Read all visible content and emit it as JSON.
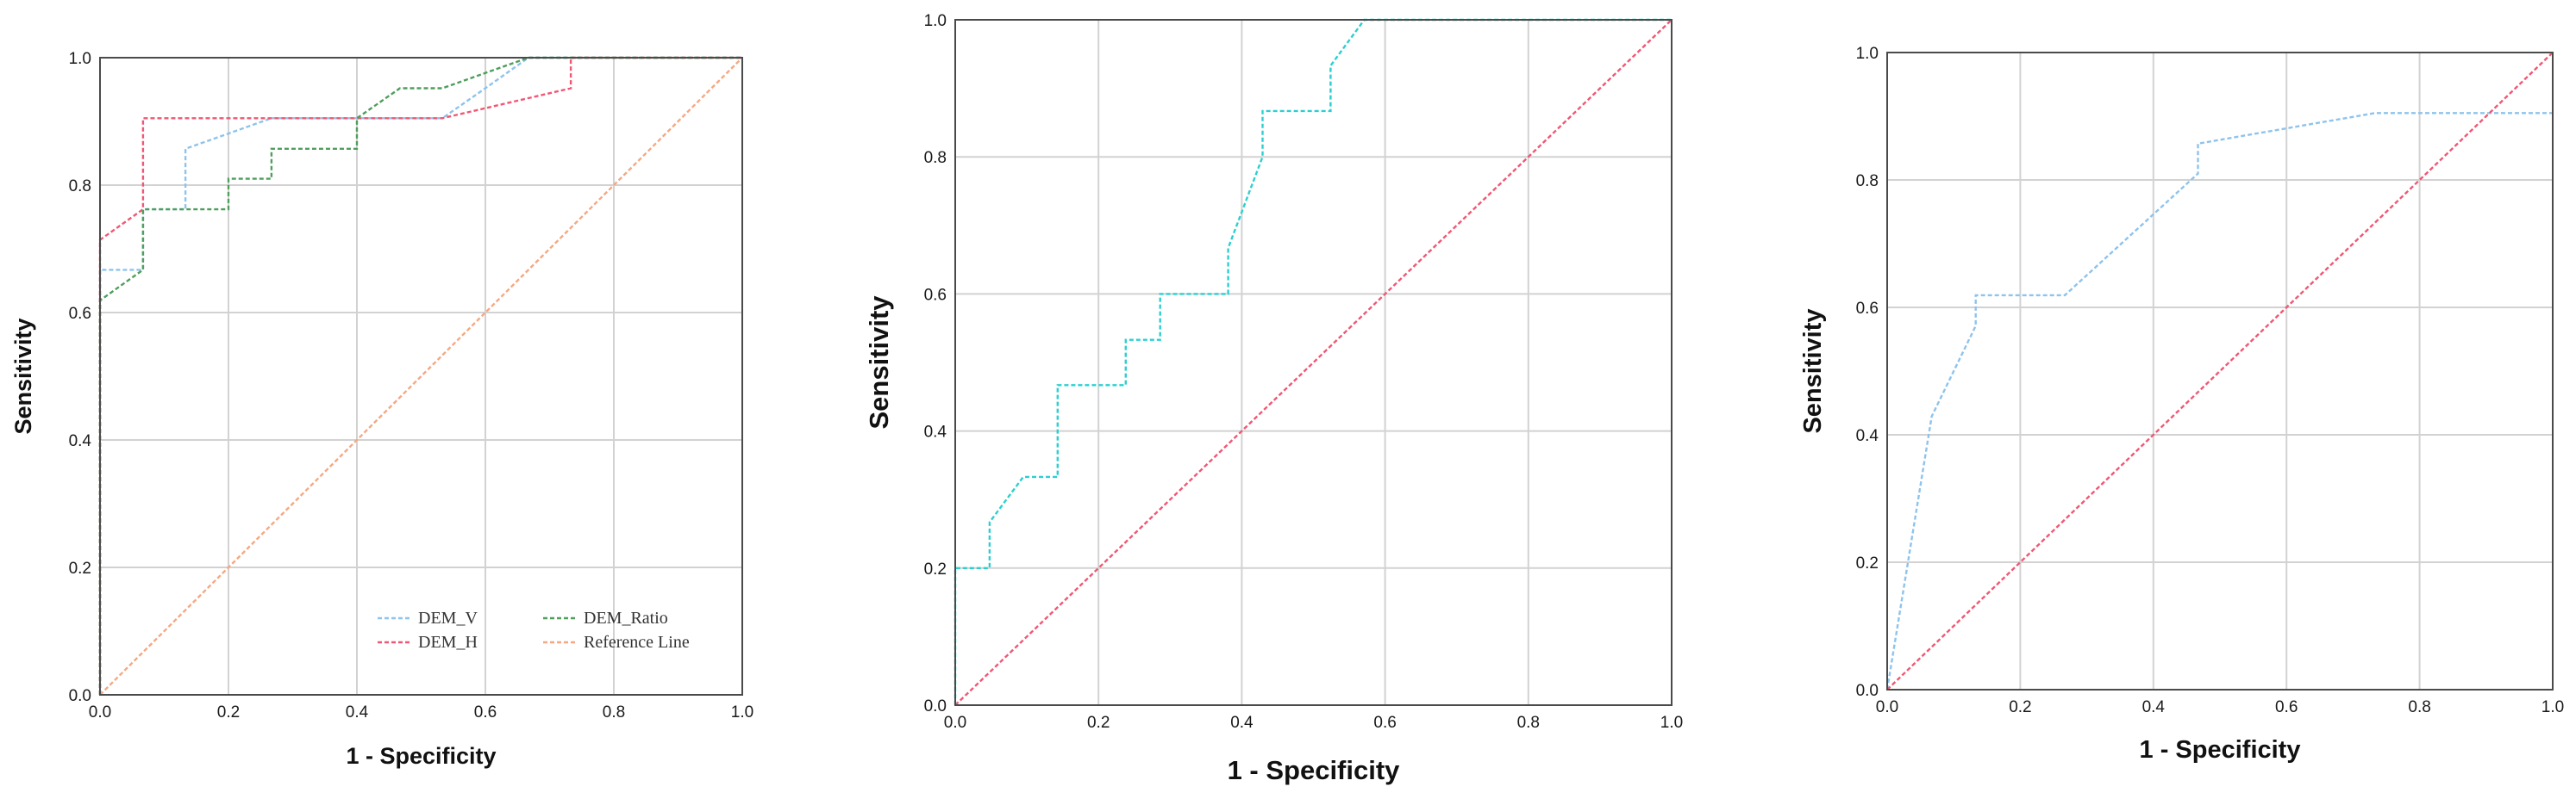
{
  "chart_data": [
    {
      "type": "line",
      "xlabel": "1 - Specificity",
      "ylabel": "Sensitivity",
      "xlim": [
        0,
        1
      ],
      "ylim": [
        0,
        1
      ],
      "xticks": [
        "0.0",
        "0.2",
        "0.4",
        "0.6",
        "0.8",
        "1.0"
      ],
      "yticks": [
        "0.0",
        "0.2",
        "0.4",
        "0.6",
        "0.8",
        "1.0"
      ],
      "grid": true,
      "legend": "bottom-right",
      "series": [
        {
          "name": "DEM_V",
          "color": "#8ec3ec",
          "x": [
            0,
            0,
            0.067,
            0.067,
            0.133,
            0.133,
            0.2,
            0.267,
            0.533,
            0.6,
            0.667,
            1
          ],
          "y": [
            0,
            0.667,
            0.667,
            0.762,
            0.762,
            0.857,
            0.881,
            0.905,
            0.905,
            0.952,
            1,
            1
          ]
        },
        {
          "name": "DEM_H",
          "color": "#f15773",
          "x": [
            0,
            0,
            0.067,
            0.067,
            0.533,
            0.733,
            0.733,
            1
          ],
          "y": [
            0,
            0.714,
            0.762,
            0.905,
            0.905,
            0.952,
            1,
            1
          ]
        },
        {
          "name": "DEM_Ratio",
          "color": "#4f9e5c",
          "x": [
            0,
            0,
            0.067,
            0.067,
            0.2,
            0.2,
            0.267,
            0.267,
            0.4,
            0.4,
            0.467,
            0.533,
            0.667,
            1
          ],
          "y": [
            0,
            0.619,
            0.667,
            0.762,
            0.762,
            0.81,
            0.81,
            0.857,
            0.857,
            0.905,
            0.952,
            0.952,
            1,
            1
          ]
        },
        {
          "name": "Reference Line",
          "color": "#f5a882",
          "x": [
            0,
            1
          ],
          "y": [
            0,
            1
          ]
        }
      ]
    },
    {
      "type": "line",
      "xlabel": "1 - Specificity",
      "ylabel": "Sensitivity",
      "xlim": [
        0,
        1
      ],
      "ylim": [
        0,
        1
      ],
      "xticks": [
        "0.0",
        "0.2",
        "0.4",
        "0.6",
        "0.8",
        "1.0"
      ],
      "yticks": [
        "0.0",
        "0.2",
        "0.4",
        "0.6",
        "0.8",
        "1.0"
      ],
      "grid": true,
      "series": [
        {
          "color": "#2ccfd0",
          "x": [
            0,
            0,
            0.048,
            0.048,
            0.095,
            0.143,
            0.143,
            0.238,
            0.238,
            0.286,
            0.286,
            0.381,
            0.381,
            0.429,
            0.429,
            0.524,
            0.524,
            0.571,
            1
          ],
          "y": [
            0,
            0.2,
            0.2,
            0.267,
            0.333,
            0.333,
            0.467,
            0.467,
            0.533,
            0.533,
            0.6,
            0.6,
            0.667,
            0.8,
            0.867,
            0.867,
            0.933,
            1,
            1
          ]
        },
        {
          "color": "#f15773",
          "x": [
            0,
            1
          ],
          "y": [
            0,
            1
          ]
        }
      ]
    },
    {
      "type": "line",
      "xlabel": "1 - Specificity",
      "ylabel": "Sensitivity",
      "xlim": [
        0,
        1
      ],
      "ylim": [
        0,
        1
      ],
      "xticks": [
        "0.0",
        "0.2",
        "0.4",
        "0.6",
        "0.8",
        "1.0"
      ],
      "yticks": [
        "0.0",
        "0.2",
        "0.4",
        "0.6",
        "0.8",
        "1.0"
      ],
      "grid": true,
      "series": [
        {
          "color": "#8ec3ec",
          "x": [
            0,
            0.067,
            0.133,
            0.133,
            0.267,
            0.467,
            0.467,
            0.733,
            1
          ],
          "y": [
            0,
            0.429,
            0.571,
            0.619,
            0.619,
            0.81,
            0.857,
            0.905,
            0.905
          ]
        },
        {
          "color": "#f15773",
          "x": [
            0,
            1
          ],
          "y": [
            0,
            1
          ]
        }
      ]
    }
  ]
}
